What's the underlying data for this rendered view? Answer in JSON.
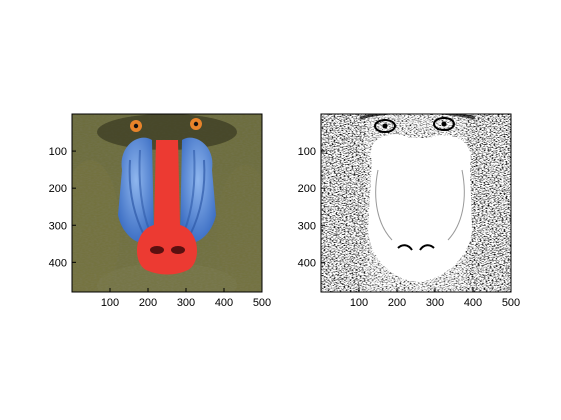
{
  "figure": {
    "background": "#ffffff",
    "axis_color": "#000000",
    "subplots": [
      {
        "name": "color-image-axes",
        "content": "color mandrill image",
        "xlim": [
          0,
          500
        ],
        "ylim": [
          0,
          480
        ],
        "x_ticks": [
          100,
          200,
          300,
          400,
          500
        ],
        "y_ticks": [
          100,
          200,
          300,
          400
        ]
      },
      {
        "name": "binary-image-axes",
        "content": "black-and-white thresholded mandrill image",
        "xlim": [
          0,
          500
        ],
        "ylim": [
          0,
          480
        ],
        "x_ticks": [
          100,
          200,
          300,
          400,
          500
        ],
        "y_ticks": [
          100,
          200,
          300,
          400
        ]
      }
    ],
    "palette": {
      "fur_dark": "#3a3a20",
      "fur_olive": "#6f7040",
      "fur_yellow": "#b59a3a",
      "cheek_blue": "#4f86d6",
      "cheek_blue_light": "#8fb6ee",
      "nose_red": "#ec3a32",
      "eye_orange": "#e7832a"
    }
  }
}
